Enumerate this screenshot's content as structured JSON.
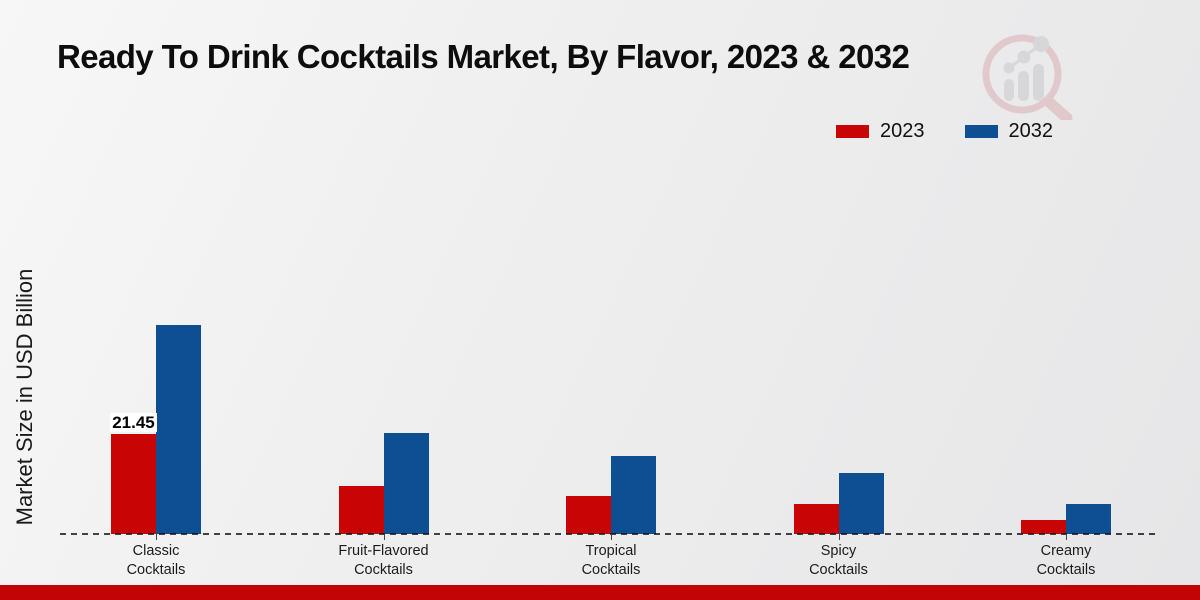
{
  "page": {
    "footer_color": "#c20404"
  },
  "chart_data": {
    "type": "bar",
    "title": "Ready To Drink Cocktails Market, By Flavor, 2023 & 2032",
    "ylabel": "Market Size in USD Billion",
    "xlabel": "",
    "categories": [
      "Classic Cocktails",
      "Fruit-Flavored Cocktails",
      "Tropical Cocktails",
      "Spicy Cocktails",
      "Creamy Cocktails"
    ],
    "series": [
      {
        "name": "2023",
        "color": "#c80404",
        "values": [
          21.45,
          10.3,
          8.1,
          6.4,
          3.0
        ]
      },
      {
        "name": "2032",
        "color": "#0d4f92",
        "values": [
          44.8,
          21.7,
          16.7,
          13.1,
          6.4
        ]
      }
    ],
    "ylim": [
      0,
      50
    ],
    "grid": false,
    "axis_style": "dashed-zero-baseline-only",
    "legend_position": "top-right",
    "annotations": [
      {
        "category": "Classic Cocktails",
        "series": "2023",
        "text": "21.45"
      }
    ]
  },
  "watermark": {
    "name": "magnifier-bar-chart-logo",
    "ring_color": "#daa8ad",
    "glyph_color": "#c6c6ca"
  }
}
